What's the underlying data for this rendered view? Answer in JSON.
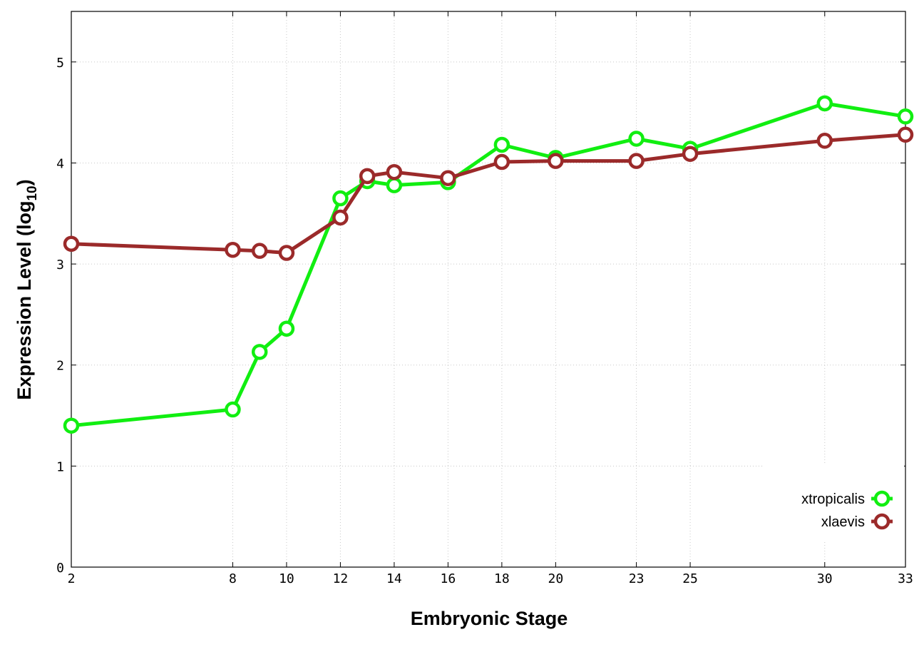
{
  "chart_data": {
    "type": "line",
    "xlabel": "Embryonic Stage",
    "ylabel_main": "Expression Level (log",
    "ylabel_sub": "10",
    "ylabel_close": ")",
    "xlim": [
      2,
      33
    ],
    "ylim": [
      0,
      5.5
    ],
    "x_ticks": [
      2,
      8,
      10,
      12,
      14,
      16,
      18,
      20,
      23,
      25,
      30,
      33
    ],
    "y_ticks": [
      0,
      1,
      2,
      3,
      4,
      5
    ],
    "grid": true,
    "legend_position": "bottom-right",
    "series": [
      {
        "name": "xtropicalis",
        "color": "#11ee11",
        "x": [
          2,
          8,
          9,
          10,
          12,
          13,
          14,
          16,
          18,
          20,
          23,
          25,
          30,
          33
        ],
        "y": [
          1.4,
          1.56,
          2.13,
          2.36,
          3.65,
          3.82,
          3.78,
          3.81,
          4.18,
          4.05,
          4.24,
          4.14,
          4.59,
          4.46
        ]
      },
      {
        "name": "xlaevis",
        "color": "#9b2a2a",
        "x": [
          2,
          8,
          9,
          10,
          12,
          13,
          14,
          16,
          18,
          20,
          23,
          25,
          30,
          33
        ],
        "y": [
          3.2,
          3.14,
          3.13,
          3.11,
          3.46,
          3.87,
          3.91,
          3.85,
          4.01,
          4.02,
          4.02,
          4.09,
          4.22,
          4.28
        ]
      }
    ]
  }
}
